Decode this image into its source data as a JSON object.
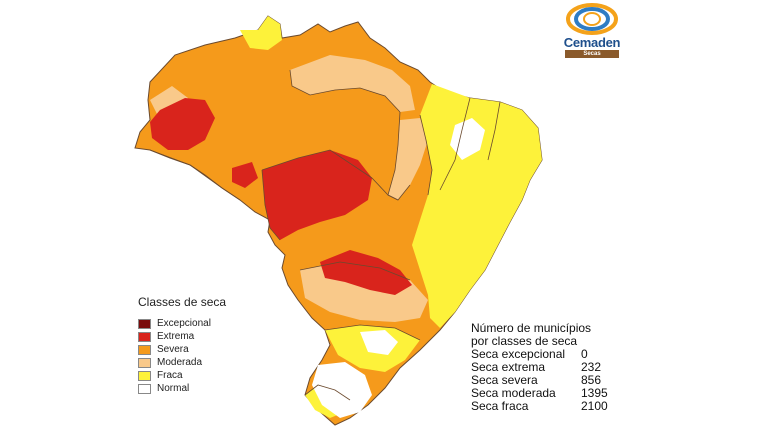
{
  "logo": {
    "name": "Cemaden",
    "subtitle": "Secas"
  },
  "legend": {
    "title": "Classes de seca",
    "items": [
      {
        "label": "Excepcional",
        "color": "#7a0c0c"
      },
      {
        "label": "Extrema",
        "color": "#d9241c"
      },
      {
        "label": "Severa",
        "color": "#f59a1b"
      },
      {
        "label": "Moderada",
        "color": "#f9c98a"
      },
      {
        "label": "Fraca",
        "color": "#fdf23a"
      },
      {
        "label": "Normal",
        "color": "#ffffff"
      }
    ]
  },
  "stats": {
    "heading_line1": "Número de municípios",
    "heading_line2": "por classes de seca",
    "rows": [
      {
        "label": "Seca excepcional",
        "value": "0"
      },
      {
        "label": "Seca extrema",
        "value": "232"
      },
      {
        "label": "Seca severa",
        "value": "856"
      },
      {
        "label": "Seca moderada",
        "value": "1395"
      },
      {
        "label": "Seca fraca",
        "value": "2100"
      }
    ]
  },
  "map": {
    "country": "Brazil",
    "border_color": "#5a2a12"
  }
}
